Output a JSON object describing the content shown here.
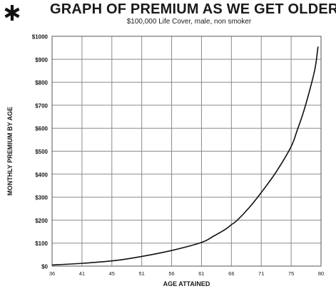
{
  "header": {
    "title": "GRAPH OF PREMIUM AS WE GET OLDER",
    "subtitle": "$100,000 Life Cover, male, non smoker"
  },
  "chart_data": {
    "type": "line",
    "title": "GRAPH OF PREMIUM AS WE GET OLDER",
    "subtitle": "$100,000 Life Cover, male, non smoker",
    "xlabel": "AGE ATTAINED",
    "ylabel": "MONTHLY PREMIUM BY AGE",
    "x_ticks": [
      "36",
      "41",
      "45",
      "51",
      "56",
      "61",
      "66",
      "71",
      "75",
      "80"
    ],
    "y_ticks": [
      "$0",
      "$100",
      "$200",
      "$300",
      "$400",
      "$500",
      "$600",
      "$700",
      "$800",
      "$900",
      "$1000"
    ],
    "ylim": [
      0,
      1000
    ],
    "grid": true,
    "series": [
      {
        "x": [
          36,
          41,
          46,
          51,
          56,
          61,
          63,
          65,
          66,
          67,
          69,
          71,
          73,
          75,
          76,
          77,
          78,
          79,
          79.5
        ],
        "y": [
          5,
          12,
          25,
          42,
          68,
          103,
          130,
          160,
          180,
          200,
          255,
          320,
          410,
          520,
          590,
          665,
          755,
          860,
          955
        ]
      }
    ]
  }
}
